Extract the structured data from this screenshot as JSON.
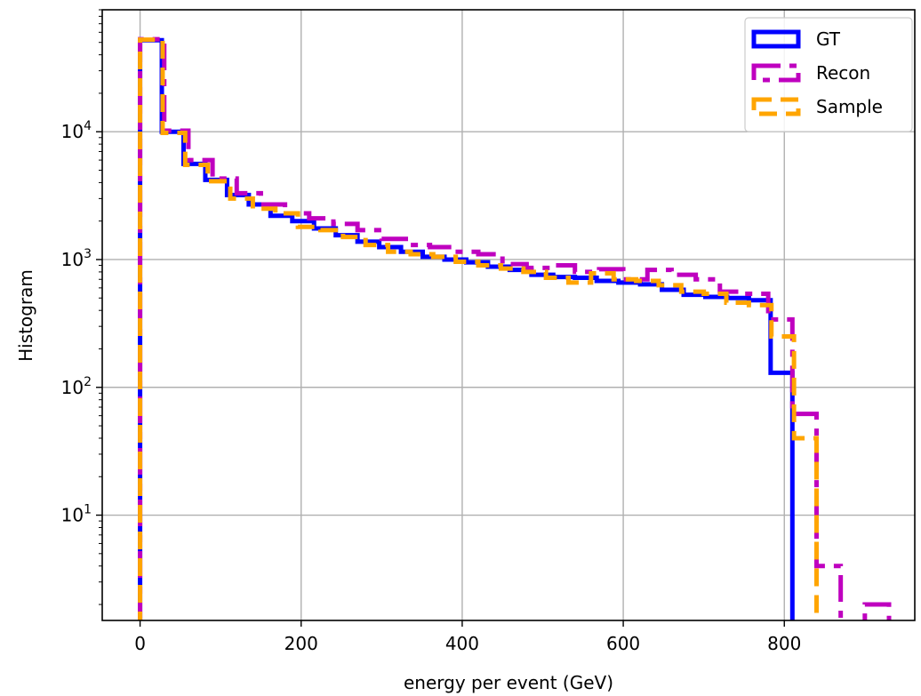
{
  "chart_data": {
    "type": "line",
    "subtype": "step-histogram",
    "xlabel": "energy per event (GeV)",
    "ylabel": "Histogram",
    "xlim": [
      -47,
      962
    ],
    "ylim": [
      1.5,
      90000
    ],
    "yscale": "log",
    "grid": true,
    "legend_position": "top-right",
    "x_ticks": [
      0,
      200,
      400,
      600,
      800
    ],
    "y_ticks": [
      {
        "value": 10,
        "base": "10",
        "exp": "1"
      },
      {
        "value": 100,
        "base": "10",
        "exp": "2"
      },
      {
        "value": 1000,
        "base": "10",
        "exp": "3"
      },
      {
        "value": 10000,
        "base": "10",
        "exp": "4"
      }
    ],
    "series": [
      {
        "name": "GT",
        "color": "#0000ff",
        "style": "solid",
        "edges": [
          0,
          27,
          54,
          81,
          108,
          135,
          162,
          189,
          216,
          243,
          270,
          297,
          324,
          351,
          378,
          405,
          432,
          459,
          486,
          513,
          540,
          567,
          594,
          621,
          648,
          675,
          702,
          729,
          756,
          783,
          810
        ],
        "counts": [
          52000,
          10000,
          5600,
          4200,
          3200,
          2700,
          2200,
          2000,
          1750,
          1550,
          1380,
          1250,
          1150,
          1050,
          1000,
          950,
          880,
          830,
          760,
          730,
          720,
          680,
          660,
          640,
          580,
          530,
          510,
          500,
          480,
          130
        ]
      },
      {
        "name": "Recon",
        "color": "#bf00bf",
        "style": "dashdot",
        "edges": [
          0,
          30,
          60,
          90,
          120,
          150,
          180,
          210,
          240,
          270,
          300,
          330,
          360,
          390,
          420,
          450,
          480,
          510,
          540,
          570,
          600,
          630,
          660,
          690,
          720,
          750,
          780,
          810,
          840,
          870,
          900,
          930
        ],
        "counts": [
          53000,
          10200,
          6000,
          4300,
          3300,
          2700,
          2300,
          2100,
          1900,
          1700,
          1450,
          1300,
          1250,
          1150,
          1100,
          920,
          860,
          900,
          800,
          840,
          700,
          830,
          760,
          700,
          560,
          540,
          340,
          62,
          4,
          0,
          2
        ]
      },
      {
        "name": "Sample",
        "color": "#ffa500",
        "style": "dashed",
        "edges": [
          0,
          28,
          56,
          84,
          112,
          140,
          168,
          196,
          224,
          252,
          280,
          308,
          336,
          364,
          392,
          420,
          448,
          476,
          504,
          532,
          560,
          588,
          616,
          644,
          672,
          700,
          728,
          756,
          784,
          812,
          840
        ],
        "counts": [
          52500,
          9800,
          5500,
          4100,
          3000,
          2500,
          2300,
          1800,
          1700,
          1500,
          1300,
          1150,
          1100,
          1050,
          960,
          900,
          850,
          800,
          720,
          660,
          780,
          700,
          680,
          630,
          560,
          540,
          460,
          440,
          250,
          40
        ]
      }
    ]
  }
}
